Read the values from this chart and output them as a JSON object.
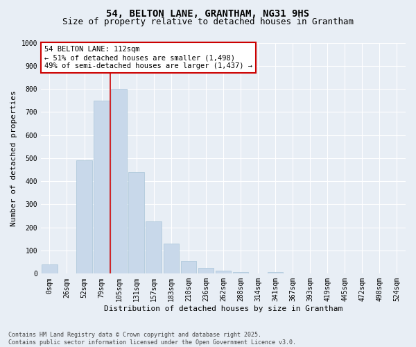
{
  "title": "54, BELTON LANE, GRANTHAM, NG31 9HS",
  "subtitle": "Size of property relative to detached houses in Grantham",
  "xlabel": "Distribution of detached houses by size in Grantham",
  "ylabel": "Number of detached properties",
  "categories": [
    "0sqm",
    "26sqm",
    "52sqm",
    "79sqm",
    "105sqm",
    "131sqm",
    "157sqm",
    "183sqm",
    "210sqm",
    "236sqm",
    "262sqm",
    "288sqm",
    "314sqm",
    "341sqm",
    "367sqm",
    "393sqm",
    "419sqm",
    "445sqm",
    "472sqm",
    "498sqm",
    "524sqm"
  ],
  "bar_heights": [
    40,
    0,
    490,
    750,
    800,
    440,
    225,
    130,
    55,
    25,
    12,
    6,
    0,
    7,
    0,
    0,
    0,
    0,
    0,
    0,
    0
  ],
  "bar_color": "#c8d8ea",
  "bar_edgecolor": "#a8c4d8",
  "vline_x_index": 4,
  "vline_color": "#cc0000",
  "annotation_text": "54 BELTON LANE: 112sqm\n← 51% of detached houses are smaller (1,498)\n49% of semi-detached houses are larger (1,437) →",
  "annotation_box_color": "#ffffff",
  "annotation_box_edgecolor": "#cc0000",
  "ylim": [
    0,
    1000
  ],
  "yticks": [
    0,
    100,
    200,
    300,
    400,
    500,
    600,
    700,
    800,
    900,
    1000
  ],
  "background_color": "#e8eef5",
  "plot_background": "#e8eef5",
  "grid_color": "#ffffff",
  "footnote": "Contains HM Land Registry data © Crown copyright and database right 2025.\nContains public sector information licensed under the Open Government Licence v3.0.",
  "title_fontsize": 10,
  "subtitle_fontsize": 9,
  "xlabel_fontsize": 8,
  "ylabel_fontsize": 8,
  "tick_fontsize": 7,
  "annot_fontsize": 7.5,
  "footnote_fontsize": 6
}
